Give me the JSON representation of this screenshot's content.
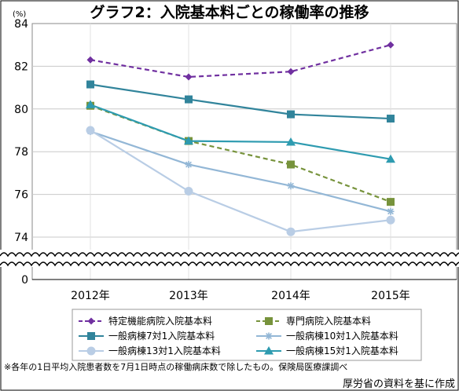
{
  "chart_data": {
    "type": "line",
    "title": "グラフ2：入院基本料ごとの稼働率の推移",
    "unit_label": "(%)",
    "categories": [
      "2012年",
      "2013年",
      "2014年",
      "2015年"
    ],
    "y_ticks": [
      "84",
      "82",
      "80",
      "78",
      "76",
      "74",
      "0"
    ],
    "ylim": [
      74,
      84
    ],
    "axis_break": true,
    "grid": true,
    "legend_position": "bottom",
    "series": [
      {
        "name": "特定機能病院入院基本料",
        "values": [
          82.3,
          81.5,
          81.75,
          83.0
        ],
        "color": "#7030a0",
        "dash": "dashed",
        "marker": "diamond"
      },
      {
        "name": "専門病院入院基本料",
        "values": [
          80.15,
          78.5,
          77.4,
          75.65
        ],
        "color": "#77933c",
        "dash": "dashed",
        "marker": "square"
      },
      {
        "name": "一般病棟7対1入院基本料",
        "values": [
          81.15,
          80.45,
          79.75,
          79.55
        ],
        "color": "#31849b",
        "dash": "solid",
        "marker": "square"
      },
      {
        "name": "一般病棟10対1入院基本料",
        "values": [
          78.95,
          77.4,
          76.4,
          75.2
        ],
        "color": "#93b7d6",
        "dash": "solid",
        "marker": "star"
      },
      {
        "name": "一般病棟13対1入院基本料",
        "values": [
          79.0,
          76.15,
          74.25,
          74.8
        ],
        "color": "#b9cde5",
        "dash": "solid",
        "marker": "circle"
      },
      {
        "name": "一般病棟15対1入院基本料",
        "values": [
          80.2,
          78.5,
          78.45,
          77.65
        ],
        "color": "#2e9bb0",
        "dash": "solid",
        "marker": "triangle"
      }
    ]
  },
  "footnote": "※各年の1日平均入院患者数を7月1日時点の稼働病床数で除したもの。保険局医療課調べ",
  "source": "厚労省の資料を基に作成"
}
